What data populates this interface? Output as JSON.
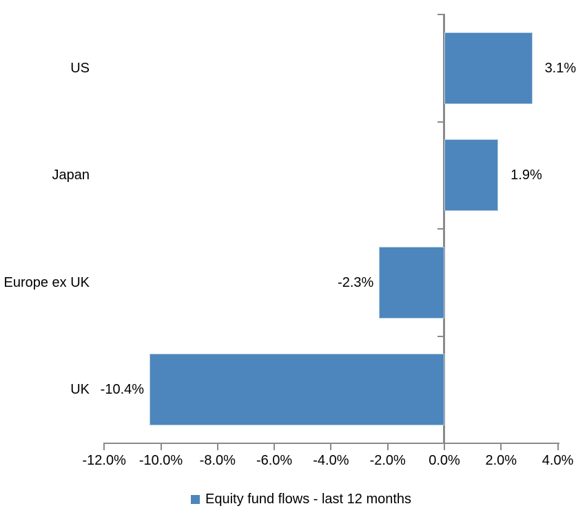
{
  "chart_data": {
    "type": "bar",
    "orientation": "horizontal",
    "title": "",
    "categories": [
      "US",
      "Japan",
      "Europe ex UK",
      "UK"
    ],
    "series": [
      {
        "name": "Equity fund flows - last 12 months",
        "values": [
          3.1,
          1.9,
          -2.3,
          -10.4
        ],
        "data_labels": [
          "3.1%",
          "1.9%",
          "-2.3%",
          "-10.4%"
        ]
      }
    ],
    "xlabel": "",
    "ylabel": "",
    "xlim": [
      -12,
      4
    ],
    "x_ticks": [
      {
        "value": -12,
        "label": "-12.0%"
      },
      {
        "value": -10,
        "label": "-10.0%"
      },
      {
        "value": -8,
        "label": "-8.0%"
      },
      {
        "value": -6,
        "label": "-6.0%"
      },
      {
        "value": -4,
        "label": "-4.0%"
      },
      {
        "value": -2,
        "label": "-2.0%"
      },
      {
        "value": 0,
        "label": "0.0%"
      },
      {
        "value": 2,
        "label": "2.0%"
      },
      {
        "value": 4,
        "label": "4.0%"
      }
    ],
    "grid": false,
    "legend": {
      "position": "bottom",
      "label": "Equity fund flows - last 12 months"
    },
    "colors": {
      "bar": "#4D86BC",
      "bar_border": "#B3CDE4",
      "axis": "#8A8A8A",
      "text": "#000000",
      "background": "#FFFFFF"
    }
  }
}
